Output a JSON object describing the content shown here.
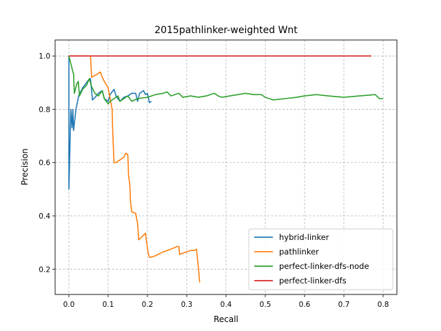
{
  "chart_data": {
    "type": "line",
    "title": "2015pathlinker-weighted Wnt",
    "xlabel": "Recall",
    "ylabel": "Precision",
    "xlim": [
      -0.035,
      0.835
    ],
    "ylim": [
      0.105,
      1.06
    ],
    "xticks": [
      0.0,
      0.1,
      0.2,
      0.3,
      0.4,
      0.5,
      0.6,
      0.7,
      0.8
    ],
    "xtick_labels": [
      "0.0",
      "0.1",
      "0.2",
      "0.3",
      "0.4",
      "0.5",
      "0.6",
      "0.7",
      "0.8"
    ],
    "yticks": [
      0.2,
      0.4,
      0.6,
      0.8,
      1.0
    ],
    "ytick_labels": [
      "0.2",
      "0.4",
      "0.6",
      "0.8",
      "1.0"
    ],
    "grid": true,
    "legend_position": "lower right",
    "series": [
      {
        "name": "hybrid-linker",
        "color": "#1f77b4",
        "points": [
          [
            0.0,
            1.0
          ],
          [
            0.0,
            0.5
          ],
          [
            0.005,
            0.8
          ],
          [
            0.008,
            0.73
          ],
          [
            0.01,
            0.8
          ],
          [
            0.012,
            0.72
          ],
          [
            0.018,
            0.8
          ],
          [
            0.025,
            0.85
          ],
          [
            0.035,
            0.88
          ],
          [
            0.045,
            0.9
          ],
          [
            0.05,
            0.91
          ],
          [
            0.055,
            0.915
          ],
          [
            0.06,
            0.835
          ],
          [
            0.07,
            0.85
          ],
          [
            0.075,
            0.86
          ],
          [
            0.08,
            0.865
          ],
          [
            0.085,
            0.87
          ],
          [
            0.09,
            0.84
          ],
          [
            0.1,
            0.83
          ],
          [
            0.105,
            0.855
          ],
          [
            0.115,
            0.875
          ],
          [
            0.12,
            0.85
          ],
          [
            0.13,
            0.83
          ],
          [
            0.14,
            0.845
          ],
          [
            0.15,
            0.85
          ],
          [
            0.16,
            0.86
          ],
          [
            0.17,
            0.86
          ],
          [
            0.175,
            0.83
          ],
          [
            0.18,
            0.86
          ],
          [
            0.19,
            0.87
          ],
          [
            0.195,
            0.855
          ],
          [
            0.2,
            0.86
          ],
          [
            0.205,
            0.825
          ],
          [
            0.21,
            0.83
          ]
        ]
      },
      {
        "name": "pathlinker",
        "color": "#ff7f0e",
        "points": [
          [
            0.0,
            1.0
          ],
          [
            0.05,
            1.0
          ],
          [
            0.055,
            1.0
          ],
          [
            0.058,
            0.92
          ],
          [
            0.07,
            0.93
          ],
          [
            0.08,
            0.94
          ],
          [
            0.085,
            0.92
          ],
          [
            0.09,
            0.905
          ],
          [
            0.1,
            0.88
          ],
          [
            0.105,
            0.84
          ],
          [
            0.11,
            0.8
          ],
          [
            0.112,
            0.7
          ],
          [
            0.115,
            0.6
          ],
          [
            0.12,
            0.6
          ],
          [
            0.13,
            0.61
          ],
          [
            0.14,
            0.62
          ],
          [
            0.145,
            0.635
          ],
          [
            0.15,
            0.63
          ],
          [
            0.152,
            0.55
          ],
          [
            0.155,
            0.52
          ],
          [
            0.157,
            0.45
          ],
          [
            0.16,
            0.415
          ],
          [
            0.17,
            0.41
          ],
          [
            0.175,
            0.37
          ],
          [
            0.178,
            0.31
          ],
          [
            0.185,
            0.32
          ],
          [
            0.195,
            0.335
          ],
          [
            0.198,
            0.3
          ],
          [
            0.202,
            0.26
          ],
          [
            0.205,
            0.245
          ],
          [
            0.21,
            0.245
          ],
          [
            0.22,
            0.25
          ],
          [
            0.24,
            0.265
          ],
          [
            0.26,
            0.275
          ],
          [
            0.275,
            0.285
          ],
          [
            0.28,
            0.285
          ],
          [
            0.282,
            0.255
          ],
          [
            0.29,
            0.26
          ],
          [
            0.3,
            0.265
          ],
          [
            0.31,
            0.27
          ],
          [
            0.32,
            0.27
          ],
          [
            0.325,
            0.275
          ],
          [
            0.33,
            0.2
          ],
          [
            0.333,
            0.15
          ]
        ]
      },
      {
        "name": "perfect-linker-dfs-node",
        "color": "#2ca02c",
        "points": [
          [
            0.0,
            1.0
          ],
          [
            0.012,
            0.93
          ],
          [
            0.014,
            0.86
          ],
          [
            0.02,
            0.895
          ],
          [
            0.024,
            0.905
          ],
          [
            0.027,
            0.85
          ],
          [
            0.035,
            0.875
          ],
          [
            0.045,
            0.89
          ],
          [
            0.052,
            0.915
          ],
          [
            0.058,
            0.885
          ],
          [
            0.066,
            0.86
          ],
          [
            0.075,
            0.85
          ],
          [
            0.085,
            0.87
          ],
          [
            0.09,
            0.84
          ],
          [
            0.095,
            0.83
          ],
          [
            0.1,
            0.82
          ],
          [
            0.105,
            0.83
          ],
          [
            0.115,
            0.84
          ],
          [
            0.125,
            0.85
          ],
          [
            0.13,
            0.83
          ],
          [
            0.14,
            0.84
          ],
          [
            0.15,
            0.85
          ],
          [
            0.16,
            0.83
          ],
          [
            0.175,
            0.84
          ],
          [
            0.2,
            0.845
          ],
          [
            0.22,
            0.855
          ],
          [
            0.24,
            0.86
          ],
          [
            0.25,
            0.865
          ],
          [
            0.26,
            0.85
          ],
          [
            0.28,
            0.86
          ],
          [
            0.29,
            0.845
          ],
          [
            0.31,
            0.85
          ],
          [
            0.33,
            0.845
          ],
          [
            0.35,
            0.85
          ],
          [
            0.37,
            0.86
          ],
          [
            0.38,
            0.85
          ],
          [
            0.39,
            0.845
          ],
          [
            0.41,
            0.85
          ],
          [
            0.43,
            0.855
          ],
          [
            0.45,
            0.86
          ],
          [
            0.47,
            0.855
          ],
          [
            0.49,
            0.855
          ],
          [
            0.5,
            0.845
          ],
          [
            0.51,
            0.84
          ],
          [
            0.52,
            0.835
          ],
          [
            0.55,
            0.84
          ],
          [
            0.58,
            0.845
          ],
          [
            0.6,
            0.85
          ],
          [
            0.63,
            0.855
          ],
          [
            0.66,
            0.85
          ],
          [
            0.7,
            0.845
          ],
          [
            0.74,
            0.85
          ],
          [
            0.78,
            0.855
          ],
          [
            0.79,
            0.84
          ],
          [
            0.8,
            0.84
          ]
        ]
      },
      {
        "name": "perfect-linker-dfs",
        "color": "#d62728",
        "points": [
          [
            0.0,
            1.0
          ],
          [
            0.77,
            1.0
          ]
        ]
      }
    ]
  }
}
